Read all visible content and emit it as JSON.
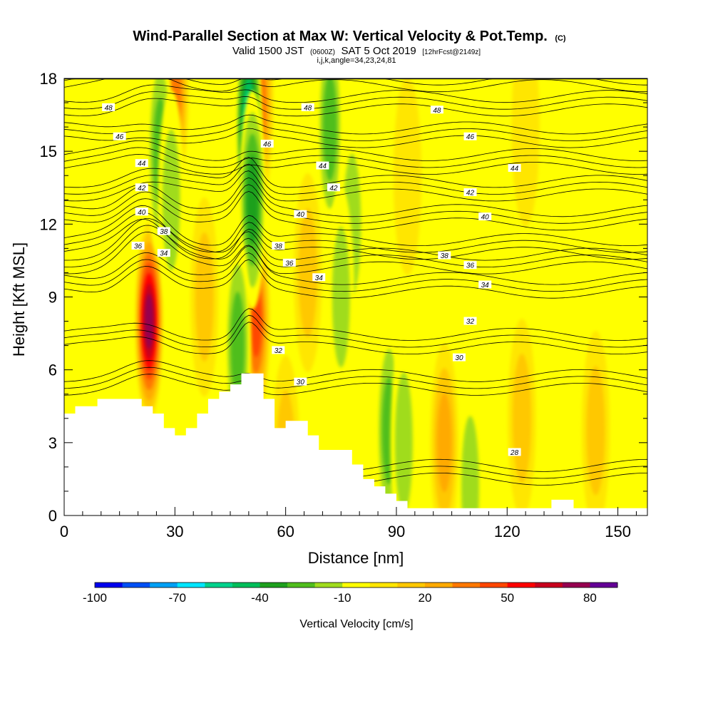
{
  "chart_data": {
    "type": "heatmap",
    "title": {
      "main": "Wind-Parallel Section at Max W: Vertical Velocity & Pot.Temp.",
      "copyright": "(C)",
      "valid_prefix": "Valid 1500 JST",
      "utc": "(0600Z)",
      "date": "SAT 5 Oct 2019",
      "forecast": "[12hrFcst@2149z]",
      "indices": "i,j,k,angle=34,23,24,81"
    },
    "xlabel": "Distance [nm]",
    "ylabel": "Height [Kft MSL]",
    "xlim": [
      0,
      158
    ],
    "ylim": [
      0,
      18
    ],
    "x_ticks": [
      0,
      30,
      60,
      90,
      120,
      150
    ],
    "y_ticks": [
      0,
      3,
      6,
      9,
      12,
      15,
      18
    ],
    "colorbar": {
      "title": "Vertical Velocity [cm/s]",
      "labels": [
        "-100",
        "-70",
        "-40",
        "-10",
        "20",
        "50",
        "80"
      ],
      "label_values": [
        -100,
        -70,
        -40,
        -10,
        20,
        50,
        80
      ],
      "bins": [
        -100,
        -90,
        -80,
        -70,
        -60,
        -50,
        -40,
        -30,
        -20,
        -10,
        0,
        10,
        20,
        30,
        40,
        50,
        60,
        70,
        80,
        90
      ],
      "colors": [
        "#0000ee",
        "#0050f5",
        "#00a0f5",
        "#00e6ff",
        "#00d28c",
        "#00be5a",
        "#1ea01e",
        "#50be1e",
        "#a0dc1e",
        "#ffff00",
        "#ffe600",
        "#ffc800",
        "#ffaa00",
        "#ff7800",
        "#ff4600",
        "#ff0000",
        "#c8001e",
        "#960050",
        "#640096"
      ]
    },
    "vertical_velocity_features": [
      {
        "x": 23,
        "y": 8,
        "value": 85
      },
      {
        "x": 52,
        "y": 8,
        "value": 55
      },
      {
        "x": 53,
        "y": 17,
        "value": 40
      },
      {
        "x": 30,
        "y": 17.5,
        "value": 40
      },
      {
        "x": 50,
        "y": 16,
        "value": -65
      },
      {
        "x": 51,
        "y": 13,
        "value": -45
      },
      {
        "x": 47,
        "y": 7,
        "value": -30
      },
      {
        "x": 26,
        "y": 15,
        "value": -35
      },
      {
        "x": 29,
        "y": 13,
        "value": -25
      },
      {
        "x": 72,
        "y": 16,
        "value": -35
      },
      {
        "x": 78,
        "y": 12,
        "value": -20
      },
      {
        "x": 75,
        "y": 9,
        "value": -20
      },
      {
        "x": 88,
        "y": 3.5,
        "value": -35
      },
      {
        "x": 92,
        "y": 3,
        "value": -20
      },
      {
        "x": 116,
        "y": 12,
        "value": -18
      },
      {
        "x": 103,
        "y": 5,
        "value": -15
      },
      {
        "x": 110,
        "y": 1.2,
        "value": -25
      },
      {
        "x": 103,
        "y": 3,
        "value": 30
      },
      {
        "x": 124,
        "y": 4,
        "value": 25
      },
      {
        "x": 144,
        "y": 3.5,
        "value": 20
      },
      {
        "x": 66,
        "y": 10,
        "value": 22
      },
      {
        "x": 38,
        "y": 9,
        "value": 22
      },
      {
        "x": 60,
        "y": 2.5,
        "value": 22
      },
      {
        "x": 125,
        "y": 16,
        "value": 18
      },
      {
        "x": 93,
        "y": 14,
        "value": 15
      }
    ],
    "potential_temperature_contours": [
      {
        "level": 28,
        "label": "28",
        "label_at": [
          122,
          2.6
        ]
      },
      {
        "level": 30,
        "label": "30",
        "label_at": [
          64,
          5.5
        ]
      },
      {
        "level": 30,
        "label": "30",
        "label_at": [
          107,
          6.5
        ]
      },
      {
        "level": 32,
        "label": "32",
        "label_at": [
          58,
          6.8
        ]
      },
      {
        "level": 32,
        "label": "32",
        "label_at": [
          110,
          8.0
        ]
      },
      {
        "level": 34,
        "label": "34",
        "label_at": [
          27,
          10.8
        ]
      },
      {
        "level": 34,
        "label": "34",
        "label_at": [
          69,
          9.8
        ]
      },
      {
        "level": 34,
        "label": "34",
        "label_at": [
          114,
          9.5
        ]
      },
      {
        "level": 36,
        "label": "36",
        "label_at": [
          20,
          11.1
        ]
      },
      {
        "level": 36,
        "label": "36",
        "label_at": [
          61,
          10.4
        ]
      },
      {
        "level": 36,
        "label": "36",
        "label_at": [
          110,
          10.3
        ]
      },
      {
        "level": 38,
        "label": "38",
        "label_at": [
          27,
          11.7
        ]
      },
      {
        "level": 38,
        "label": "38",
        "label_at": [
          58,
          11.1
        ]
      },
      {
        "level": 38,
        "label": "38",
        "label_at": [
          103,
          10.7
        ]
      },
      {
        "level": 40,
        "label": "40",
        "label_at": [
          21,
          12.5
        ]
      },
      {
        "level": 40,
        "label": "40",
        "label_at": [
          64,
          12.4
        ]
      },
      {
        "level": 40,
        "label": "40",
        "label_at": [
          114,
          12.3
        ]
      },
      {
        "level": 42,
        "label": "42",
        "label_at": [
          21,
          13.5
        ]
      },
      {
        "level": 42,
        "label": "42",
        "label_at": [
          73,
          13.5
        ]
      },
      {
        "level": 42,
        "label": "42",
        "label_at": [
          110,
          13.3
        ]
      },
      {
        "level": 44,
        "label": "44",
        "label_at": [
          21,
          14.5
        ]
      },
      {
        "level": 44,
        "label": "44",
        "label_at": [
          70,
          14.4
        ]
      },
      {
        "level": 44,
        "label": "44",
        "label_at": [
          122,
          14.3
        ]
      },
      {
        "level": 46,
        "label": "46",
        "label_at": [
          15,
          15.6
        ]
      },
      {
        "level": 46,
        "label": "46",
        "label_at": [
          55,
          15.3
        ]
      },
      {
        "level": 46,
        "label": "46",
        "label_at": [
          110,
          15.6
        ]
      },
      {
        "level": 48,
        "label": "48",
        "label_at": [
          12,
          16.8
        ]
      },
      {
        "level": 48,
        "label": "48",
        "label_at": [
          66,
          16.8
        ]
      },
      {
        "level": 48,
        "label": "48",
        "label_at": [
          101,
          16.7
        ]
      }
    ],
    "terrain": [
      [
        0,
        4.2
      ],
      [
        3,
        4.2
      ],
      [
        3,
        4.5
      ],
      [
        9,
        4.5
      ],
      [
        9,
        4.8
      ],
      [
        21,
        4.8
      ],
      [
        21,
        4.5
      ],
      [
        24,
        4.5
      ],
      [
        24,
        4.2
      ],
      [
        27,
        4.2
      ],
      [
        27,
        3.6
      ],
      [
        30,
        3.6
      ],
      [
        30,
        3.3
      ],
      [
        33,
        3.3
      ],
      [
        33,
        3.6
      ],
      [
        36,
        3.6
      ],
      [
        36,
        4.2
      ],
      [
        39,
        4.2
      ],
      [
        39,
        4.8
      ],
      [
        42,
        4.8
      ],
      [
        42,
        5.1
      ],
      [
        45,
        5.1
      ],
      [
        45,
        5.4
      ],
      [
        48,
        5.4
      ],
      [
        48,
        5.85
      ],
      [
        54,
        5.85
      ],
      [
        54,
        4.8
      ],
      [
        57,
        4.8
      ],
      [
        57,
        3.6
      ],
      [
        60,
        3.6
      ],
      [
        60,
        3.9
      ],
      [
        66,
        3.9
      ],
      [
        66,
        3.3
      ],
      [
        69,
        3.3
      ],
      [
        69,
        2.7
      ],
      [
        78,
        2.7
      ],
      [
        78,
        2.1
      ],
      [
        81,
        2.1
      ],
      [
        81,
        1.5
      ],
      [
        84,
        1.5
      ],
      [
        84,
        1.2
      ],
      [
        87,
        1.2
      ],
      [
        87,
        0.9
      ],
      [
        90,
        0.9
      ],
      [
        90,
        0.6
      ],
      [
        93,
        0.6
      ],
      [
        93,
        0.3
      ],
      [
        99,
        0.3
      ],
      [
        99,
        0.3
      ],
      [
        132,
        0.3
      ],
      [
        132,
        0.65
      ],
      [
        138,
        0.65
      ],
      [
        138,
        0.3
      ],
      [
        158,
        0.3
      ],
      [
        158,
        0
      ]
    ]
  }
}
